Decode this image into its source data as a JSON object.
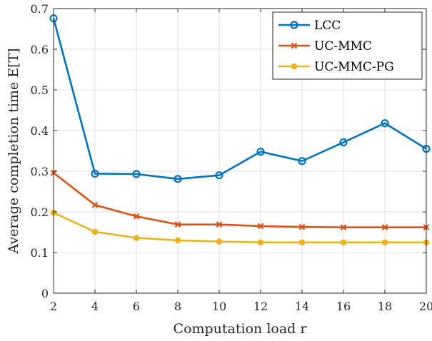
{
  "chart_data": {
    "type": "line",
    "title": "",
    "xlabel": "Computation load r",
    "ylabel": "Average completion time E[T]",
    "x": [
      2,
      4,
      6,
      8,
      10,
      12,
      14,
      16,
      18,
      20
    ],
    "xlim": [
      2,
      20
    ],
    "ylim": [
      0,
      0.7
    ],
    "xticks": [
      2,
      4,
      6,
      8,
      10,
      12,
      14,
      16,
      18,
      20
    ],
    "yticks": [
      0,
      0.1,
      0.2,
      0.3,
      0.4,
      0.5,
      0.6,
      0.7
    ],
    "xtick_labels": [
      "2",
      "4",
      "6",
      "8",
      "10",
      "12",
      "14",
      "16",
      "18",
      "20"
    ],
    "ytick_labels": [
      "0",
      "0.1",
      "0.2",
      "0.3",
      "0.4",
      "0.5",
      "0.6",
      "0.7"
    ],
    "grid": true,
    "legend_position": "top-right",
    "series": [
      {
        "name": "LCC",
        "marker": "circle",
        "color": "#0072BD",
        "values": [
          0.676,
          0.294,
          0.293,
          0.281,
          0.29,
          0.348,
          0.325,
          0.371,
          0.418,
          0.355
        ]
      },
      {
        "name": "UC-MMC",
        "marker": "x",
        "color": "#D95319",
        "values": [
          0.296,
          0.217,
          0.189,
          0.169,
          0.169,
          0.165,
          0.163,
          0.162,
          0.162,
          0.162
        ]
      },
      {
        "name": "UC-MMC-PG",
        "marker": "dot",
        "color": "#EDB120",
        "values": [
          0.198,
          0.151,
          0.136,
          0.13,
          0.127,
          0.125,
          0.125,
          0.125,
          0.125,
          0.125
        ]
      }
    ]
  }
}
